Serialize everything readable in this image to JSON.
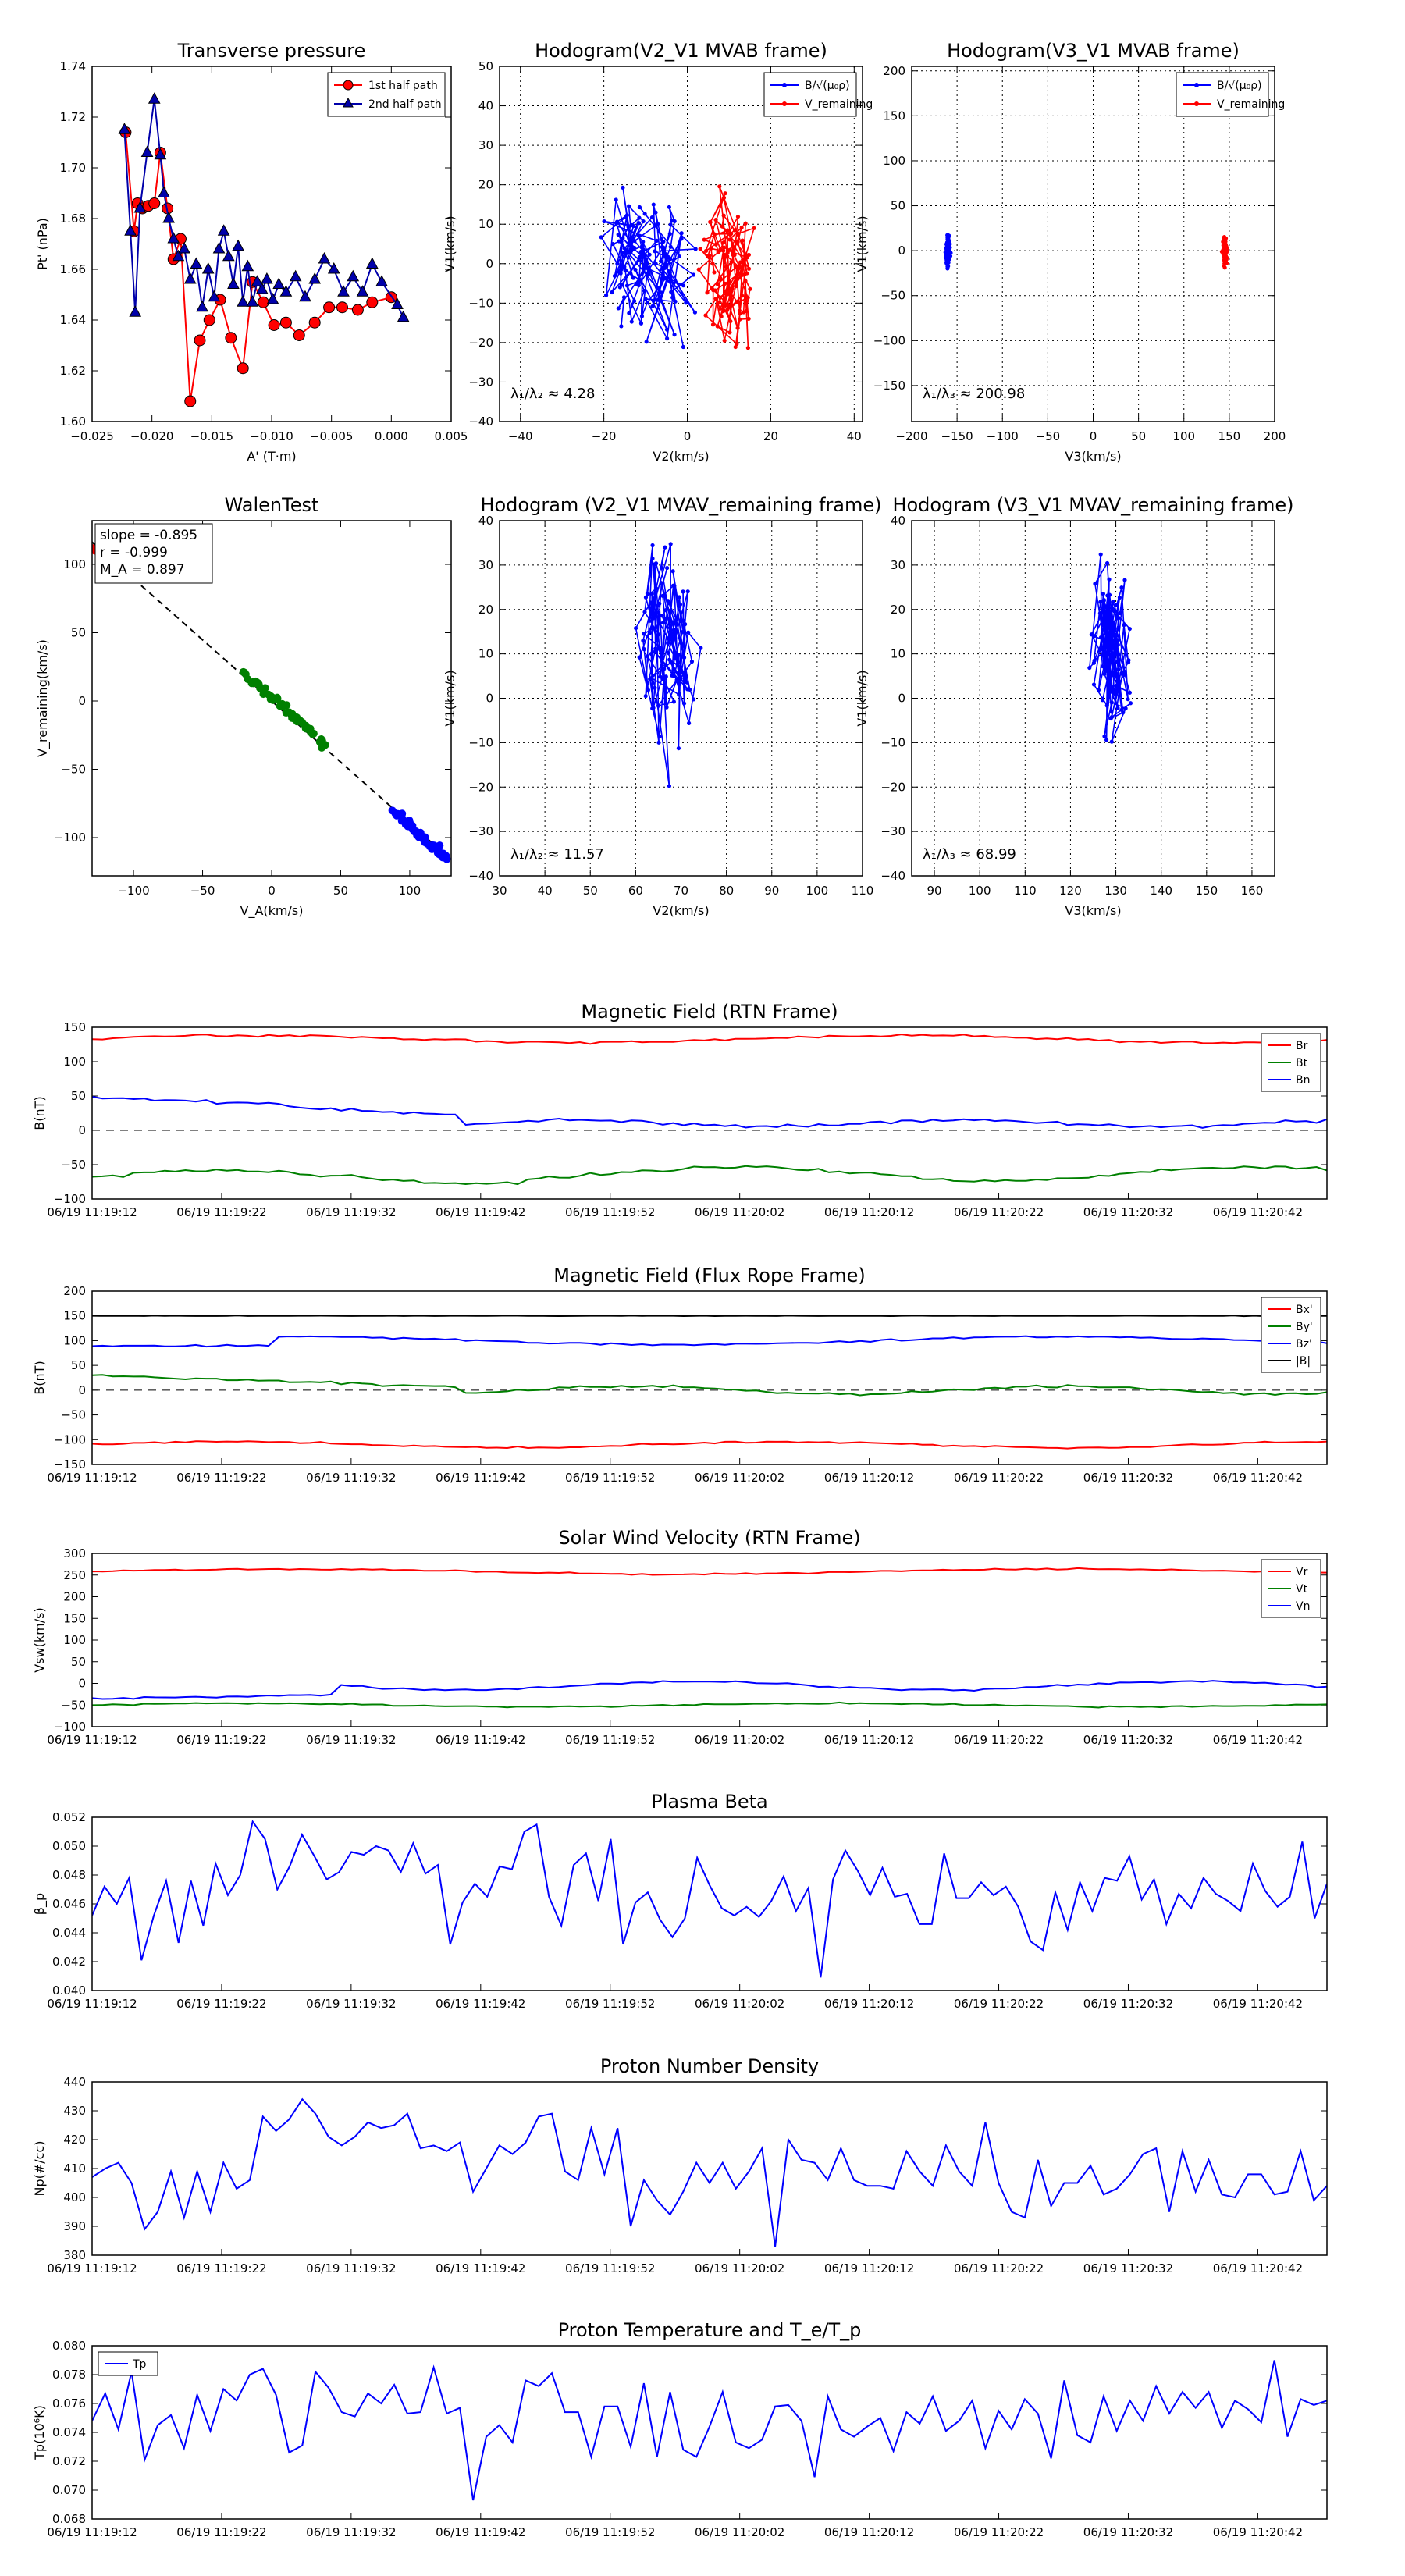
{
  "chart_data": [
    {
      "id": "tp",
      "type": "line",
      "title": "Transverse pressure",
      "xlabel": "A' (T·m)",
      "ylabel": "Pt' (nPa)",
      "xlim": [
        -0.025,
        0.005
      ],
      "ylim": [
        1.6,
        1.74
      ],
      "xticks": [
        -0.025,
        -0.02,
        -0.015,
        -0.01,
        -0.005,
        0.0,
        0.005
      ],
      "xtick_labels": [
        "−0.025",
        "−0.020",
        "−0.015",
        "−0.010",
        "−0.005",
        "0.000",
        "0.005"
      ],
      "yticks": [
        1.6,
        1.62,
        1.64,
        1.66,
        1.68,
        1.7,
        1.72,
        1.74
      ],
      "ytick_labels": [
        "1.60",
        "1.62",
        "1.64",
        "1.66",
        "1.68",
        "1.70",
        "1.72",
        "1.74"
      ],
      "legend": "top-right",
      "series": [
        {
          "name": "1st half path",
          "color": "#ff0000",
          "marker": "circle",
          "x": [
            -0.0222,
            -0.0215,
            -0.0212,
            -0.0208,
            -0.0203,
            -0.0198,
            -0.0193,
            -0.0187,
            -0.0182,
            -0.0176,
            -0.0168,
            -0.016,
            -0.0152,
            -0.0143,
            -0.0134,
            -0.0124,
            -0.0116,
            -0.0107,
            -0.0098,
            -0.0088,
            -0.0077,
            -0.0064,
            -0.0052,
            -0.0041,
            -0.0028,
            -0.0016,
            0.0
          ],
          "y": [
            1.714,
            1.675,
            1.686,
            1.684,
            1.685,
            1.686,
            1.706,
            1.684,
            1.664,
            1.672,
            1.608,
            1.632,
            1.64,
            1.648,
            1.633,
            1.621,
            1.655,
            1.647,
            1.638,
            1.639,
            1.634,
            1.639,
            1.645,
            1.645,
            1.644,
            1.647,
            1.649
          ]
        },
        {
          "name": "2nd half path",
          "color": "#0000aa",
          "marker": "triangle",
          "x": [
            -0.0223,
            -0.0218,
            -0.0214,
            -0.021,
            -0.0204,
            -0.0198,
            -0.0193,
            -0.019,
            -0.0186,
            -0.0182,
            -0.0178,
            -0.0173,
            -0.0168,
            -0.0163,
            -0.0158,
            -0.0153,
            -0.0148,
            -0.0144,
            -0.014,
            -0.0136,
            -0.0132,
            -0.0128,
            -0.0124,
            -0.012,
            -0.0116,
            -0.0112,
            -0.0108,
            -0.0104,
            -0.0099,
            -0.0094,
            -0.0088,
            -0.008,
            -0.0072,
            -0.0064,
            -0.0056,
            -0.0048,
            -0.004,
            -0.0032,
            -0.0024,
            -0.0016,
            -0.0008,
            0.0005,
            0.001
          ],
          "y": [
            1.715,
            1.675,
            1.643,
            1.684,
            1.706,
            1.727,
            1.705,
            1.69,
            1.68,
            1.672,
            1.665,
            1.668,
            1.656,
            1.662,
            1.645,
            1.66,
            1.649,
            1.668,
            1.675,
            1.665,
            1.654,
            1.669,
            1.647,
            1.661,
            1.647,
            1.655,
            1.652,
            1.656,
            1.648,
            1.654,
            1.651,
            1.657,
            1.649,
            1.656,
            1.664,
            1.66,
            1.651,
            1.657,
            1.651,
            1.662,
            1.655,
            1.646,
            1.641
          ]
        }
      ]
    },
    {
      "id": "h1",
      "type": "line",
      "title": "Hodogram(V2_V1 MVAB frame)",
      "xlabel": "V2(km/s)",
      "ylabel": "V1(km/s)",
      "xlim": [
        -45,
        42
      ],
      "ylim": [
        -40,
        50
      ],
      "xticks": [
        -40,
        -20,
        0,
        20,
        40
      ],
      "xtick_labels": [
        "−40",
        "−20",
        "0",
        "20",
        "40"
      ],
      "yticks": [
        -40,
        -30,
        -20,
        -10,
        0,
        10,
        20,
        30,
        40,
        50
      ],
      "ytick_labels": [
        "−40",
        "−30",
        "−20",
        "−10",
        "0",
        "10",
        "20",
        "30",
        "40",
        "50"
      ],
      "grid": true,
      "legend": "top-right",
      "annotation": "λ₁/λ₂ ≈ 4.28",
      "series": [
        {
          "name": "B/√(μ₀ρ)",
          "color": "#0000ff",
          "marker": "dot",
          "x": [],
          "y": []
        },
        {
          "name": "V_remaining",
          "color": "#ff0000",
          "marker": "dot",
          "x": [],
          "y": []
        }
      ]
    },
    {
      "id": "h2",
      "type": "line",
      "title": "Hodogram(V3_V1 MVAB frame)",
      "xlabel": "V3(km/s)",
      "ylabel": "V1(km/s)",
      "xlim": [
        -200,
        200
      ],
      "ylim": [
        -190,
        205
      ],
      "xticks": [
        -200,
        -150,
        -100,
        -50,
        0,
        50,
        100,
        150,
        200
      ],
      "xtick_labels": [
        "−200",
        "−150",
        "−100",
        "−50",
        "0",
        "50",
        "100",
        "150",
        "200"
      ],
      "yticks": [
        -150,
        -100,
        -50,
        0,
        50,
        100,
        150,
        200
      ],
      "ytick_labels": [
        "−150",
        "−100",
        "−50",
        "0",
        "50",
        "100",
        "150",
        "200"
      ],
      "grid": true,
      "legend": "top-right",
      "annotation": "λ₁/λ₃ ≈ 200.98",
      "series": [
        {
          "name": "B/√(μ₀ρ)",
          "color": "#0000ff",
          "marker": "dot",
          "x": [],
          "y": []
        },
        {
          "name": "V_remaining",
          "color": "#ff0000",
          "marker": "dot",
          "x": [],
          "y": []
        }
      ]
    },
    {
      "id": "wt",
      "type": "scatter",
      "title": "WalenTest",
      "xlabel": "V_A(km/s)",
      "ylabel": "V_remaining(km/s)",
      "xlim": [
        -130,
        130
      ],
      "ylim": [
        -128,
        132
      ],
      "xticks": [
        -100,
        -50,
        0,
        50,
        100
      ],
      "xtick_labels": [
        "−100",
        "−50",
        "0",
        "50",
        "100"
      ],
      "yticks": [
        -100,
        -50,
        0,
        50,
        100
      ],
      "ytick_labels": [
        "−100",
        "−50",
        "0",
        "50",
        "100"
      ],
      "fit_slope": -0.895,
      "annotation_lines": [
        "slope = -0.895",
        "r = -0.999",
        "M_A = 0.897"
      ],
      "series": [
        {
          "name": "green",
          "color": "#008000",
          "x": [],
          "y": []
        },
        {
          "name": "blue",
          "color": "#0000ff",
          "x": [],
          "y": []
        },
        {
          "name": "red",
          "color": "#ff0000",
          "x": [
            -130,
            -128
          ],
          "y": [
            112,
            110
          ]
        }
      ]
    },
    {
      "id": "h3",
      "type": "line",
      "title": "Hodogram (V2_V1 MVAV_remaining frame)",
      "xlabel": "V2(km/s)",
      "ylabel": "V1(km/s)",
      "xlim": [
        30,
        110
      ],
      "ylim": [
        -40,
        40
      ],
      "xticks": [
        30,
        40,
        50,
        60,
        70,
        80,
        90,
        100,
        110
      ],
      "xtick_labels": [
        "30",
        "40",
        "50",
        "60",
        "70",
        "80",
        "90",
        "100",
        "110"
      ],
      "yticks": [
        -40,
        -30,
        -20,
        -10,
        0,
        10,
        20,
        30,
        40
      ],
      "ytick_labels": [
        "−40",
        "−30",
        "−20",
        "−10",
        "0",
        "10",
        "20",
        "30",
        "40"
      ],
      "grid": true,
      "annotation": "λ₁/λ₂ ≈ 11.57",
      "series": [
        {
          "name": "V",
          "color": "#0000ff",
          "x": [],
          "y": []
        }
      ]
    },
    {
      "id": "h4",
      "type": "line",
      "title": "Hodogram (V3_V1 MVAV_remaining frame)",
      "xlabel": "V3(km/s)",
      "ylabel": "V1(km/s)",
      "xlim": [
        85,
        165
      ],
      "ylim": [
        -40,
        40
      ],
      "xticks": [
        90,
        100,
        110,
        120,
        130,
        140,
        150,
        160
      ],
      "xtick_labels": [
        "90",
        "100",
        "110",
        "120",
        "130",
        "140",
        "150",
        "160"
      ],
      "yticks": [
        -40,
        -30,
        -20,
        -10,
        0,
        10,
        20,
        30,
        40
      ],
      "ytick_labels": [
        "−40",
        "−30",
        "−20",
        "−10",
        "0",
        "10",
        "20",
        "30",
        "40"
      ],
      "grid": true,
      "annotation": "λ₁/λ₃ ≈ 68.99",
      "series": [
        {
          "name": "V",
          "color": "#0000ff",
          "x": [],
          "y": []
        }
      ]
    },
    {
      "id": "ts1",
      "type": "line",
      "title": "Magnetic Field (RTN Frame)",
      "ylabel": "B(nT)",
      "ylim": [
        -100,
        150
      ],
      "yticks": [
        -100,
        -50,
        0,
        50,
        100,
        150
      ],
      "ytick_labels": [
        "−100",
        "−50",
        "0",
        "50",
        "100",
        "150"
      ],
      "zero_line": true,
      "legend": "top-right",
      "series": [
        {
          "name": "Br",
          "color": "#ff0000",
          "values": []
        },
        {
          "name": "Bt",
          "color": "#008000",
          "values": []
        },
        {
          "name": "Bn",
          "color": "#0000ff",
          "values": []
        }
      ]
    },
    {
      "id": "ts2",
      "type": "line",
      "title": "Magnetic Field (Flux Rope Frame)",
      "ylabel": "B(nT)",
      "ylim": [
        -150,
        200
      ],
      "yticks": [
        -150,
        -100,
        -50,
        0,
        50,
        100,
        150,
        200
      ],
      "ytick_labels": [
        "−150",
        "−100",
        "−50",
        "0",
        "50",
        "100",
        "150",
        "200"
      ],
      "zero_line": true,
      "legend": "top-right",
      "series": [
        {
          "name": "Bx'",
          "color": "#ff0000",
          "values": []
        },
        {
          "name": "By'",
          "color": "#008000",
          "values": []
        },
        {
          "name": "Bz'",
          "color": "#0000ff",
          "values": []
        },
        {
          "name": "|B|",
          "color": "#000000",
          "values": []
        }
      ]
    },
    {
      "id": "ts3",
      "type": "line",
      "title": "Solar Wind Velocity (RTN Frame)",
      "ylabel": "Vsw(km/s)",
      "ylim": [
        -100,
        300
      ],
      "yticks": [
        -100,
        -50,
        0,
        50,
        100,
        150,
        200,
        250,
        300
      ],
      "ytick_labels": [
        "−100",
        "−50",
        "0",
        "50",
        "100",
        "150",
        "200",
        "250",
        "300"
      ],
      "legend": "top-right",
      "series": [
        {
          "name": "Vr",
          "color": "#ff0000",
          "values": []
        },
        {
          "name": "Vt",
          "color": "#008000",
          "values": []
        },
        {
          "name": "Vn",
          "color": "#0000ff",
          "values": []
        }
      ]
    },
    {
      "id": "ts4",
      "type": "line",
      "title": "Plasma Beta",
      "ylabel": "β_p",
      "ylim": [
        0.04,
        0.052
      ],
      "yticks": [
        0.04,
        0.042,
        0.044,
        0.046,
        0.048,
        0.05,
        0.052
      ],
      "ytick_labels": [
        "0.040",
        "0.042",
        "0.044",
        "0.046",
        "0.048",
        "0.050",
        "0.052"
      ],
      "series": [
        {
          "name": "beta",
          "color": "#0000ff",
          "values": [
            0.0452,
            0.0472,
            0.046,
            0.0478,
            0.0421,
            0.0452,
            0.0476,
            0.0433,
            0.0476,
            0.0445,
            0.0488,
            0.0466,
            0.048,
            0.0517,
            0.0505,
            0.047,
            0.0486,
            0.0508,
            0.0493,
            0.0477,
            0.0482,
            0.0496,
            0.0494,
            0.05,
            0.0497,
            0.0482,
            0.0502,
            0.0481,
            0.0487,
            0.0432,
            0.0461,
            0.0474,
            0.0465,
            0.0486,
            0.0484,
            0.051,
            0.0515,
            0.0465,
            0.0445,
            0.0487,
            0.0495,
            0.0462,
            0.0505,
            0.0432,
            0.0461,
            0.0468,
            0.0449,
            0.0437,
            0.045,
            0.0492,
            0.0473,
            0.0457,
            0.0452,
            0.0458,
            0.0451,
            0.0462,
            0.0479,
            0.0455,
            0.0471,
            0.0409,
            0.0477,
            0.0497,
            0.0483,
            0.0466,
            0.0485,
            0.0465,
            0.0467,
            0.0446,
            0.0446,
            0.0495,
            0.0464,
            0.0464,
            0.0475,
            0.0466,
            0.0472,
            0.0458,
            0.0434,
            0.0428,
            0.0468,
            0.0442,
            0.0475,
            0.0455,
            0.0478,
            0.0476,
            0.0493,
            0.0463,
            0.0477,
            0.0446,
            0.0467,
            0.0457,
            0.0478,
            0.0467,
            0.0462,
            0.0455,
            0.0488,
            0.0469,
            0.0458,
            0.0465,
            0.0503,
            0.045,
            0.0474
          ]
        }
      ]
    },
    {
      "id": "ts5",
      "type": "line",
      "title": "Proton Number Density",
      "ylabel": "Np(#/cc)",
      "ylim": [
        380,
        440
      ],
      "yticks": [
        380,
        390,
        400,
        410,
        420,
        430,
        440
      ],
      "ytick_labels": [
        "380",
        "390",
        "400",
        "410",
        "420",
        "430",
        "440"
      ],
      "series": [
        {
          "name": "Np",
          "color": "#0000ff",
          "values": [
            407,
            410,
            412,
            405,
            389,
            395,
            409,
            393,
            409,
            395,
            412,
            403,
            406,
            428,
            423,
            427,
            434,
            429,
            421,
            418,
            421,
            426,
            424,
            425,
            429,
            417,
            418,
            416,
            419,
            402,
            410,
            418,
            415,
            419,
            428,
            429,
            409,
            406,
            424,
            408,
            424,
            390,
            406,
            399,
            394,
            402,
            412,
            405,
            412,
            403,
            409,
            417,
            383,
            420,
            413,
            412,
            406,
            417,
            406,
            404,
            404,
            403,
            416,
            409,
            404,
            418,
            409,
            404,
            426,
            405,
            395,
            393,
            413,
            397,
            405,
            405,
            411,
            401,
            403,
            408,
            415,
            417,
            395,
            416,
            402,
            413,
            401,
            400,
            408,
            408,
            401,
            402,
            416,
            399,
            404
          ]
        }
      ]
    },
    {
      "id": "ts6",
      "type": "line",
      "title": "Proton Temperature and T_e/T_p",
      "ylabel": "Tp(10⁶K)",
      "ylim": [
        0.068,
        0.08
      ],
      "yticks": [
        0.068,
        0.07,
        0.072,
        0.074,
        0.076,
        0.078,
        0.08
      ],
      "ytick_labels": [
        "0.068",
        "0.070",
        "0.072",
        "0.074",
        "0.076",
        "0.078",
        "0.080"
      ],
      "legend": "top-left",
      "series": [
        {
          "name": "Tp",
          "color": "#0000ff",
          "values": [
            0.0748,
            0.0767,
            0.0742,
            0.0782,
            0.0721,
            0.0745,
            0.0752,
            0.0729,
            0.0766,
            0.0741,
            0.077,
            0.0762,
            0.078,
            0.0784,
            0.0766,
            0.0726,
            0.0731,
            0.0782,
            0.0771,
            0.0754,
            0.0751,
            0.0767,
            0.076,
            0.0773,
            0.0753,
            0.0754,
            0.0785,
            0.0753,
            0.0757,
            0.0693,
            0.0737,
            0.0745,
            0.0733,
            0.0776,
            0.0772,
            0.0781,
            0.0754,
            0.0754,
            0.0723,
            0.0758,
            0.0758,
            0.073,
            0.0774,
            0.0723,
            0.0768,
            0.0728,
            0.0723,
            0.0744,
            0.0768,
            0.0733,
            0.0729,
            0.0735,
            0.0758,
            0.0759,
            0.0748,
            0.0709,
            0.0765,
            0.0742,
            0.0737,
            0.0744,
            0.075,
            0.0727,
            0.0754,
            0.0746,
            0.0765,
            0.0741,
            0.0748,
            0.0762,
            0.0729,
            0.0755,
            0.0742,
            0.0763,
            0.0753,
            0.0722,
            0.0776,
            0.0738,
            0.0733,
            0.0765,
            0.0741,
            0.0762,
            0.0748,
            0.0772,
            0.0753,
            0.0768,
            0.0757,
            0.0768,
            0.0743,
            0.0762,
            0.0756,
            0.0747,
            0.079,
            0.0737,
            0.0763,
            0.0759,
            0.0762
          ]
        }
      ]
    }
  ],
  "time_axis": {
    "tick_labels": [
      "06/19 11:19:12",
      "06/19 11:19:22",
      "06/19 11:19:32",
      "06/19 11:19:42",
      "06/19 11:19:52",
      "06/19 11:20:02",
      "06/19 11:20:12",
      "06/19 11:20:22",
      "06/19 11:20:32",
      "06/19 11:20:42"
    ]
  }
}
